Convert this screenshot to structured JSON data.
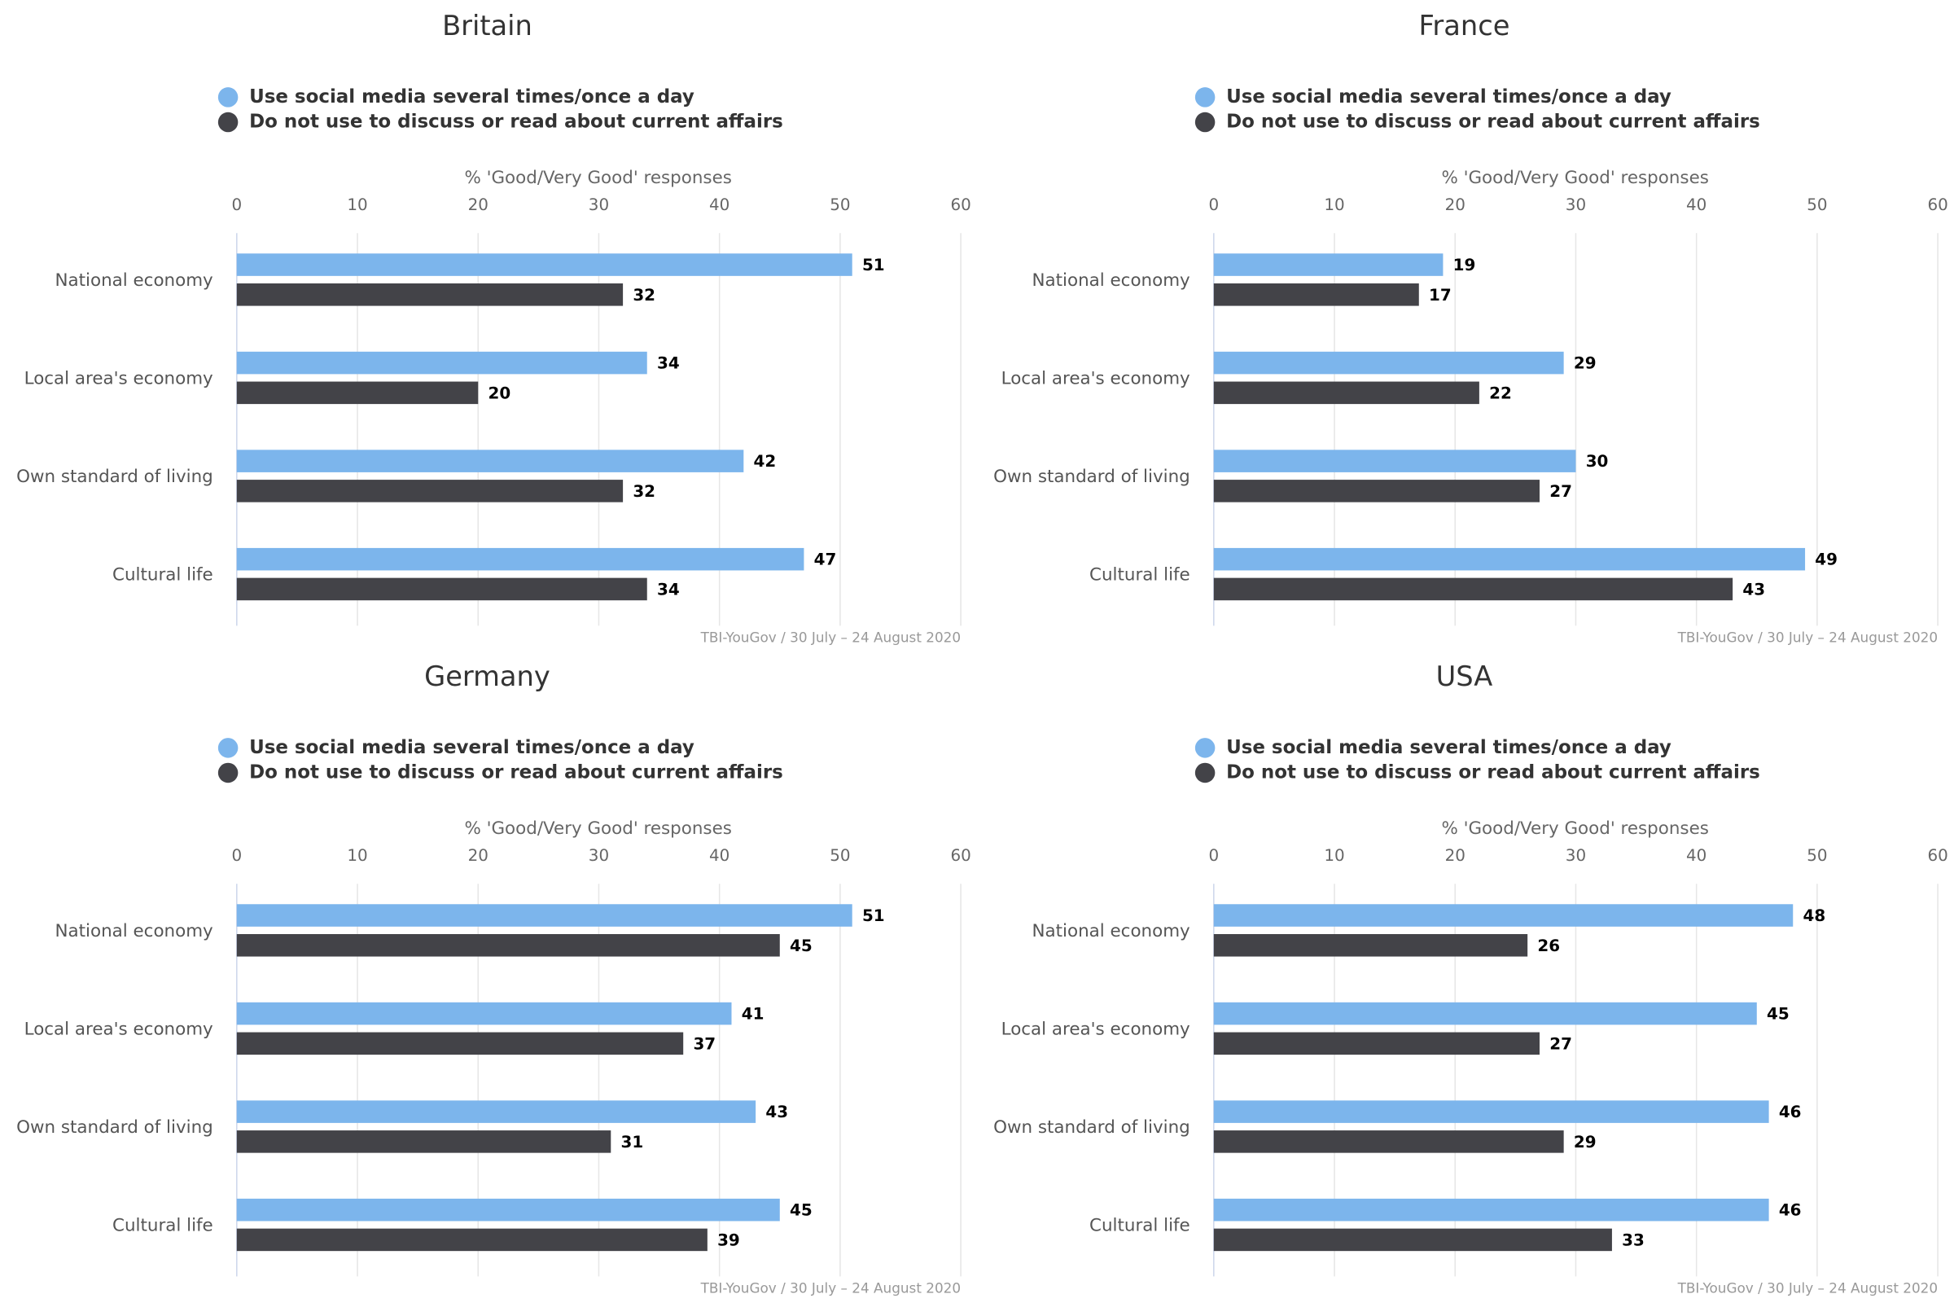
{
  "chart_data": [
    {
      "type": "bar",
      "title": "Britain",
      "x_label": "% 'Good/Very Good' responses",
      "source": "TBI-YouGov / 30 July – 24 August 2020",
      "categories": [
        "National economy",
        "Local area's economy",
        "Own standard of living",
        "Cultural life"
      ],
      "series": [
        {
          "name": "Use social media several times/once a day",
          "color": "#7cb5ec",
          "values": [
            51,
            34,
            42,
            47
          ]
        },
        {
          "name": "Do not use to discuss or read about current affairs",
          "color": "#434348",
          "values": [
            32,
            20,
            32,
            34
          ]
        }
      ],
      "xlim": [
        0,
        60
      ],
      "xticks": [
        0,
        10,
        20,
        30,
        40,
        50,
        60
      ],
      "grid": true
    },
    {
      "type": "bar",
      "title": "France",
      "x_label": "% 'Good/Very Good' responses",
      "source": "TBI-YouGov / 30 July – 24 August 2020",
      "categories": [
        "National economy",
        "Local area's economy",
        "Own standard of living",
        "Cultural life"
      ],
      "series": [
        {
          "name": "Use social media several times/once a day",
          "color": "#7cb5ec",
          "values": [
            19,
            29,
            30,
            49
          ]
        },
        {
          "name": "Do not use to discuss or read about current affairs",
          "color": "#434348",
          "values": [
            17,
            22,
            27,
            43
          ]
        }
      ],
      "xlim": [
        0,
        60
      ],
      "xticks": [
        0,
        10,
        20,
        30,
        40,
        50,
        60
      ],
      "grid": true
    },
    {
      "type": "bar",
      "title": "Germany",
      "x_label": "% 'Good/Very Good' responses",
      "source": "TBI-YouGov / 30 July – 24 August 2020",
      "categories": [
        "National economy",
        "Local area's economy",
        "Own standard of living",
        "Cultural life"
      ],
      "series": [
        {
          "name": "Use social media several times/once a day",
          "color": "#7cb5ec",
          "values": [
            51,
            41,
            43,
            45
          ]
        },
        {
          "name": "Do not use to discuss or read about current affairs",
          "color": "#434348",
          "values": [
            45,
            37,
            31,
            39
          ]
        }
      ],
      "xlim": [
        0,
        60
      ],
      "xticks": [
        0,
        10,
        20,
        30,
        40,
        50,
        60
      ],
      "grid": true
    },
    {
      "type": "bar",
      "title": "USA",
      "x_label": "% 'Good/Very Good' responses",
      "source": "TBI-YouGov / 30 July – 24 August 2020",
      "categories": [
        "National economy",
        "Local area's economy",
        "Own standard of living",
        "Cultural life"
      ],
      "series": [
        {
          "name": "Use social media several times/once a day",
          "color": "#7cb5ec",
          "values": [
            48,
            45,
            46,
            46
          ]
        },
        {
          "name": "Do not use to discuss or read about current affairs",
          "color": "#434348",
          "values": [
            26,
            27,
            29,
            33
          ]
        }
      ],
      "xlim": [
        0,
        60
      ],
      "xticks": [
        0,
        10,
        20,
        30,
        40,
        50,
        60
      ],
      "grid": true
    }
  ]
}
